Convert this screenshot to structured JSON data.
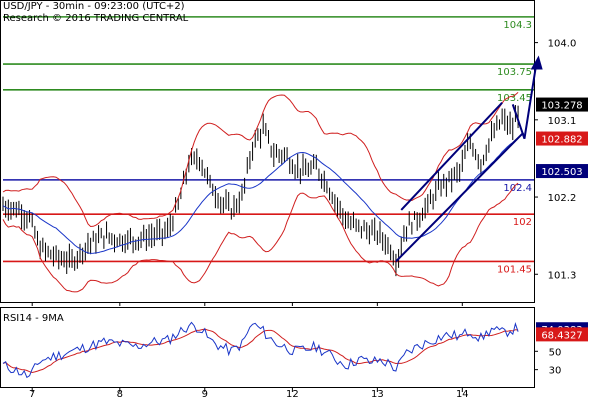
{
  "header": {
    "title": "USD/JPY - 30min - 09:23:00 (UTC+2)",
    "source": "Research © 2016 TRADING CENTRAL"
  },
  "colors": {
    "green": "#2e8b20",
    "red": "#d81818",
    "blue": "#1818a8",
    "navy": "#00007a",
    "bollinger": "#d02020",
    "ma_blue": "#1a36c8",
    "price": "#000000",
    "grid": "#d0d0d0"
  },
  "chart_data": [
    {
      "type": "candlestick",
      "title": "USD/JPY - 30min - 09:23:00 (UTC+2)",
      "ylim": [
        101.0,
        104.45
      ],
      "y_ticks": [
        {
          "value": 104.0,
          "label": "104.0"
        },
        {
          "value": 103.1,
          "label": "103.1"
        },
        {
          "value": 102.2,
          "label": "102.2"
        },
        {
          "value": 101.3,
          "label": "101.3"
        }
      ],
      "x_ticks": [
        "7",
        "8",
        "9",
        "12",
        "13",
        "14"
      ],
      "levels": [
        {
          "value": 104.3,
          "label": "104.3",
          "color": "green"
        },
        {
          "value": 103.75,
          "label": "103.75",
          "color": "green"
        },
        {
          "value": 103.45,
          "label": "103.45",
          "color": "green"
        },
        {
          "value": 102.4,
          "label": "102.4",
          "color": "blue"
        },
        {
          "value": 102.0,
          "label": "102",
          "color": "red"
        },
        {
          "value": 101.45,
          "label": "101.45",
          "color": "red"
        }
      ],
      "price_tags": [
        {
          "value": 103.278,
          "label": "103.278",
          "color": "price"
        },
        {
          "value": 102.882,
          "label": "102.882",
          "color": "red"
        },
        {
          "value": 102.503,
          "label": "102.503",
          "color": "navy"
        }
      ],
      "price_path": [
        [
          0,
          102.1
        ],
        [
          3,
          102.05
        ],
        [
          5,
          101.95
        ],
        [
          7,
          101.6
        ],
        [
          10,
          101.5
        ],
        [
          13,
          101.45
        ],
        [
          16,
          101.65
        ],
        [
          19,
          101.75
        ],
        [
          22,
          101.7
        ],
        [
          25,
          101.7
        ],
        [
          28,
          101.75
        ],
        [
          31,
          101.8
        ],
        [
          33,
          102.1
        ],
        [
          35,
          102.6
        ],
        [
          37,
          102.65
        ],
        [
          39,
          102.35
        ],
        [
          41,
          102.15
        ],
        [
          43,
          102.05
        ],
        [
          45,
          102.2
        ],
        [
          47,
          102.8
        ],
        [
          49,
          103.0
        ],
        [
          51,
          102.7
        ],
        [
          53,
          102.7
        ],
        [
          55,
          102.55
        ],
        [
          57,
          102.5
        ],
        [
          59,
          102.55
        ],
        [
          61,
          102.35
        ],
        [
          63,
          102.1
        ],
        [
          65,
          101.9
        ],
        [
          67,
          101.85
        ],
        [
          69,
          101.8
        ],
        [
          71,
          101.75
        ],
        [
          73,
          101.6
        ],
        [
          74,
          101.45
        ],
        [
          76,
          101.85
        ],
        [
          78,
          101.95
        ],
        [
          80,
          102.1
        ],
        [
          82,
          102.3
        ],
        [
          84,
          102.4
        ],
        [
          86,
          102.5
        ],
        [
          88,
          102.85
        ],
        [
          90,
          102.6
        ],
        [
          92,
          102.9
        ],
        [
          94,
          103.1
        ],
        [
          96,
          103.0
        ],
        [
          97,
          103.2
        ]
      ],
      "trend_channel": {
        "upper": [
          [
            75,
            102.05
          ],
          [
            94,
            103.3
          ]
        ],
        "lower": [
          [
            74,
            101.45
          ],
          [
            98,
            102.95
          ]
        ],
        "projection": [
          [
            96,
            103.28
          ],
          [
            98.2,
            102.88
          ],
          [
            100.5,
            103.78
          ]
        ]
      }
    },
    {
      "type": "line",
      "title": "RSI14 - 9MA",
      "ylim": [
        10,
        95
      ],
      "y_ticks": [
        {
          "value": 50,
          "label": "50"
        },
        {
          "value": 30,
          "label": "30"
        }
      ],
      "price_tags": [
        {
          "value": 74.0383,
          "label": "74.0383",
          "color": "navy"
        },
        {
          "value": 68.4327,
          "label": "68.4327",
          "color": "red"
        }
      ],
      "rsi": [
        [
          0,
          35
        ],
        [
          3,
          28
        ],
        [
          5,
          22
        ],
        [
          7,
          40
        ],
        [
          10,
          45
        ],
        [
          13,
          50
        ],
        [
          16,
          55
        ],
        [
          19,
          60
        ],
        [
          22,
          58
        ],
        [
          25,
          55
        ],
        [
          28,
          60
        ],
        [
          31,
          62
        ],
        [
          33,
          70
        ],
        [
          35,
          78
        ],
        [
          37,
          76
        ],
        [
          39,
          62
        ],
        [
          41,
          55
        ],
        [
          43,
          50
        ],
        [
          45,
          58
        ],
        [
          47,
          80
        ],
        [
          49,
          72
        ],
        [
          51,
          60
        ],
        [
          53,
          55
        ],
        [
          55,
          50
        ],
        [
          57,
          52
        ],
        [
          59,
          55
        ],
        [
          61,
          48
        ],
        [
          63,
          40
        ],
        [
          65,
          35
        ],
        [
          67,
          42
        ],
        [
          69,
          38
        ],
        [
          71,
          40
        ],
        [
          73,
          36
        ],
        [
          74,
          30
        ],
        [
          76,
          48
        ],
        [
          78,
          55
        ],
        [
          80,
          60
        ],
        [
          82,
          65
        ],
        [
          84,
          68
        ],
        [
          86,
          66
        ],
        [
          88,
          72
        ],
        [
          90,
          64
        ],
        [
          92,
          74
        ],
        [
          94,
          70
        ],
        [
          96,
          74
        ],
        [
          97,
          75
        ]
      ]
    }
  ]
}
